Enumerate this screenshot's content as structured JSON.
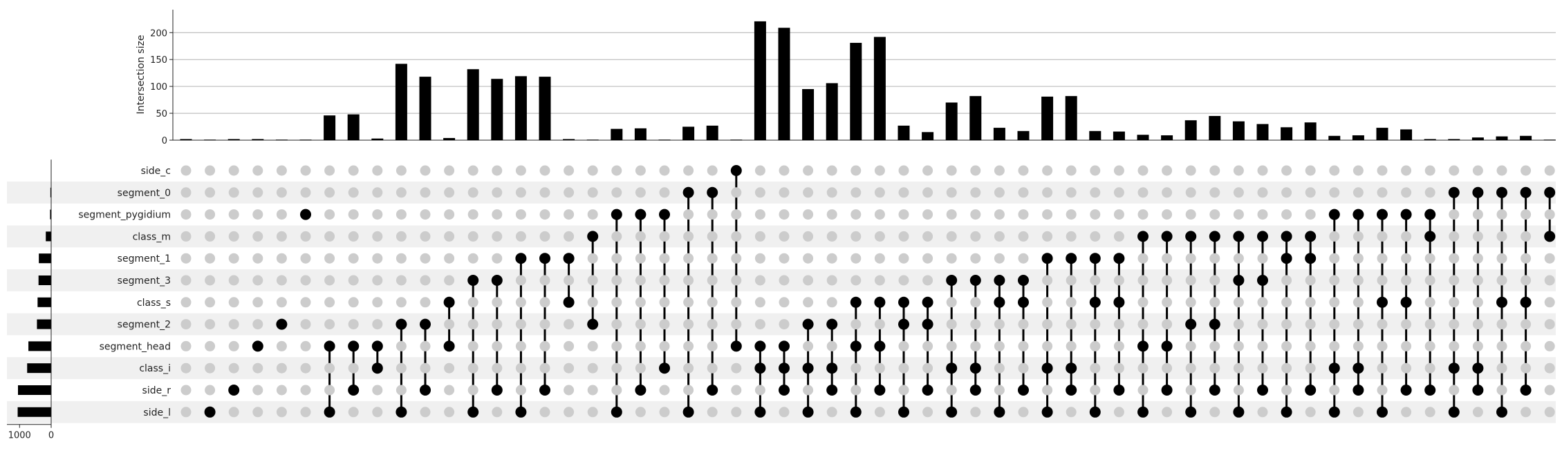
{
  "chart_data": {
    "type": "upset",
    "ylabel": "Intersection size",
    "y_ticks": [
      0,
      50,
      100,
      150,
      200
    ],
    "ylim": [
      0,
      235
    ],
    "set_size_ticks": [
      "1000",
      "0"
    ],
    "set_size_max": 1400,
    "sets": [
      {
        "name": "side_c",
        "size": 2
      },
      {
        "name": "segment_0",
        "size": 25
      },
      {
        "name": "segment_pygidium",
        "size": 35
      },
      {
        "name": "class_m",
        "size": 170
      },
      {
        "name": "segment_1",
        "size": 390
      },
      {
        "name": "segment_3",
        "size": 400
      },
      {
        "name": "class_s",
        "size": 430
      },
      {
        "name": "segment_2",
        "size": 450
      },
      {
        "name": "segment_head",
        "size": 720
      },
      {
        "name": "class_i",
        "size": 760
      },
      {
        "name": "side_r",
        "size": 1050
      },
      {
        "name": "side_l",
        "size": 1060
      }
    ],
    "intersections": [
      {
        "value": 2,
        "members": []
      },
      {
        "value": 1,
        "members": [
          "side_l"
        ]
      },
      {
        "value": 2,
        "members": [
          "side_r"
        ]
      },
      {
        "value": 2,
        "members": [
          "segment_head"
        ]
      },
      {
        "value": 1,
        "members": [
          "segment_2"
        ]
      },
      {
        "value": 1,
        "members": [
          "segment_pygidium"
        ]
      },
      {
        "value": 46,
        "members": [
          "segment_head",
          "side_l"
        ]
      },
      {
        "value": 48,
        "members": [
          "segment_head",
          "side_r"
        ]
      },
      {
        "value": 3,
        "members": [
          "segment_head",
          "class_i"
        ]
      },
      {
        "value": 142,
        "members": [
          "segment_2",
          "side_l"
        ]
      },
      {
        "value": 118,
        "members": [
          "segment_2",
          "side_r"
        ]
      },
      {
        "value": 4,
        "members": [
          "class_s",
          "segment_head"
        ]
      },
      {
        "value": 132,
        "members": [
          "segment_3",
          "side_l"
        ]
      },
      {
        "value": 114,
        "members": [
          "segment_3",
          "side_r"
        ]
      },
      {
        "value": 119,
        "members": [
          "segment_1",
          "side_l"
        ]
      },
      {
        "value": 118,
        "members": [
          "segment_1",
          "side_r"
        ]
      },
      {
        "value": 2,
        "members": [
          "segment_1",
          "class_s"
        ]
      },
      {
        "value": 1,
        "members": [
          "class_m",
          "segment_2"
        ]
      },
      {
        "value": 21,
        "members": [
          "segment_pygidium",
          "side_l"
        ]
      },
      {
        "value": 22,
        "members": [
          "segment_pygidium",
          "side_r"
        ]
      },
      {
        "value": 1,
        "members": [
          "segment_pygidium",
          "class_i"
        ]
      },
      {
        "value": 25,
        "members": [
          "segment_0",
          "side_l"
        ]
      },
      {
        "value": 27,
        "members": [
          "segment_0",
          "side_r"
        ]
      },
      {
        "value": 1,
        "members": [
          "side_c",
          "segment_head"
        ]
      },
      {
        "value": 221,
        "members": [
          "segment_head",
          "class_i",
          "side_l"
        ]
      },
      {
        "value": 209,
        "members": [
          "segment_head",
          "class_i",
          "side_r"
        ]
      },
      {
        "value": 95,
        "members": [
          "segment_2",
          "class_i",
          "side_l"
        ]
      },
      {
        "value": 106,
        "members": [
          "segment_2",
          "class_i",
          "side_r"
        ]
      },
      {
        "value": 181,
        "members": [
          "class_s",
          "segment_head",
          "side_l"
        ]
      },
      {
        "value": 192,
        "members": [
          "class_s",
          "segment_head",
          "side_r"
        ]
      },
      {
        "value": 27,
        "members": [
          "class_s",
          "segment_2",
          "side_l"
        ]
      },
      {
        "value": 15,
        "members": [
          "class_s",
          "segment_2",
          "side_r"
        ]
      },
      {
        "value": 70,
        "members": [
          "segment_3",
          "class_i",
          "side_l"
        ]
      },
      {
        "value": 82,
        "members": [
          "segment_3",
          "class_i",
          "side_r"
        ]
      },
      {
        "value": 23,
        "members": [
          "segment_3",
          "class_s",
          "side_l"
        ]
      },
      {
        "value": 17,
        "members": [
          "segment_3",
          "class_s",
          "side_r"
        ]
      },
      {
        "value": 81,
        "members": [
          "segment_1",
          "class_i",
          "side_l"
        ]
      },
      {
        "value": 82,
        "members": [
          "segment_1",
          "class_i",
          "side_r"
        ]
      },
      {
        "value": 17,
        "members": [
          "segment_1",
          "class_s",
          "side_l"
        ]
      },
      {
        "value": 16,
        "members": [
          "segment_1",
          "class_s",
          "side_r"
        ]
      },
      {
        "value": 10,
        "members": [
          "class_m",
          "segment_head",
          "side_l"
        ]
      },
      {
        "value": 9,
        "members": [
          "class_m",
          "segment_head",
          "side_r"
        ]
      },
      {
        "value": 37,
        "members": [
          "class_m",
          "segment_2",
          "side_l"
        ]
      },
      {
        "value": 45,
        "members": [
          "class_m",
          "segment_2",
          "side_r"
        ]
      },
      {
        "value": 35,
        "members": [
          "class_m",
          "segment_3",
          "side_l"
        ]
      },
      {
        "value": 30,
        "members": [
          "class_m",
          "segment_3",
          "side_r"
        ]
      },
      {
        "value": 24,
        "members": [
          "class_m",
          "segment_1",
          "side_l"
        ]
      },
      {
        "value": 33,
        "members": [
          "class_m",
          "segment_1",
          "side_r"
        ]
      },
      {
        "value": 8,
        "members": [
          "segment_pygidium",
          "class_i",
          "side_l"
        ]
      },
      {
        "value": 9,
        "members": [
          "segment_pygidium",
          "class_i",
          "side_r"
        ]
      },
      {
        "value": 23,
        "members": [
          "segment_pygidium",
          "class_s",
          "side_l"
        ]
      },
      {
        "value": 20,
        "members": [
          "segment_pygidium",
          "class_s",
          "side_r"
        ]
      },
      {
        "value": 2,
        "members": [
          "segment_pygidium",
          "class_m",
          "side_r"
        ]
      },
      {
        "value": 2,
        "members": [
          "segment_0",
          "class_i",
          "side_l"
        ]
      },
      {
        "value": 5,
        "members": [
          "segment_0",
          "class_i",
          "side_r"
        ]
      },
      {
        "value": 7,
        "members": [
          "segment_0",
          "class_s",
          "side_l"
        ]
      },
      {
        "value": 8,
        "members": [
          "segment_0",
          "class_s",
          "side_r"
        ]
      },
      {
        "value": 1,
        "members": [
          "segment_0",
          "class_m"
        ]
      }
    ],
    "grid": true,
    "colors": {
      "bar": "#000000",
      "dot_active": "#000000",
      "dot_inactive": "#cccccc",
      "stripe": "#f0f0f0",
      "grid": "#b0b0b0"
    }
  }
}
